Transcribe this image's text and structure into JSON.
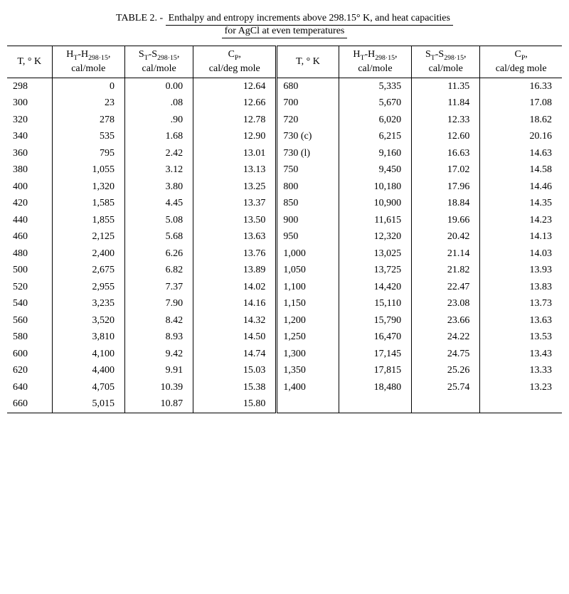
{
  "title": {
    "prefix": "TABLE 2. - ",
    "line1": "Enthalpy and entropy increments above 298.15° K, and heat capacities",
    "line2": "for AgCl at even temperatures"
  },
  "columns": {
    "temp": "T, ° K",
    "h_top": "H",
    "h_sub1": "T",
    "h_dash": "-H",
    "h_sub2": "298·15",
    "h_comma": ",",
    "h_unit": "cal/mole",
    "s_top": "S",
    "s_sub1": "T",
    "s_dash": "-S",
    "s_sub2": "298·15",
    "s_comma": ",",
    "s_unit": "cal/mole",
    "cp_top": "C",
    "cp_sub": "P",
    "cp_comma": ",",
    "cp_unit": "cal/deg mole"
  },
  "rows": [
    {
      "t1": "298",
      "h1": "0",
      "s1": "0.00",
      "c1": "12.64",
      "t2": "680",
      "h2": "5,335",
      "s2": "11.35",
      "c2": "16.33"
    },
    {
      "t1": "300",
      "h1": "23",
      "s1": ".08",
      "c1": "12.66",
      "t2": "700",
      "h2": "5,670",
      "s2": "11.84",
      "c2": "17.08"
    },
    {
      "t1": "320",
      "h1": "278",
      "s1": ".90",
      "c1": "12.78",
      "t2": "720",
      "h2": "6,020",
      "s2": "12.33",
      "c2": "18.62"
    },
    {
      "t1": "340",
      "h1": "535",
      "s1": "1.68",
      "c1": "12.90",
      "t2": "730 (c)",
      "h2": "6,215",
      "s2": "12.60",
      "c2": "20.16"
    },
    {
      "t1": "360",
      "h1": "795",
      "s1": "2.42",
      "c1": "13.01",
      "t2": "730 (l)",
      "h2": "9,160",
      "s2": "16.63",
      "c2": "14.63"
    },
    {
      "t1": "380",
      "h1": "1,055",
      "s1": "3.12",
      "c1": "13.13",
      "t2": "750",
      "h2": "9,450",
      "s2": "17.02",
      "c2": "14.58"
    },
    {
      "t1": "400",
      "h1": "1,320",
      "s1": "3.80",
      "c1": "13.25",
      "t2": "800",
      "h2": "10,180",
      "s2": "17.96",
      "c2": "14.46"
    },
    {
      "t1": "420",
      "h1": "1,585",
      "s1": "4.45",
      "c1": "13.37",
      "t2": "850",
      "h2": "10,900",
      "s2": "18.84",
      "c2": "14.35"
    },
    {
      "t1": "440",
      "h1": "1,855",
      "s1": "5.08",
      "c1": "13.50",
      "t2": "900",
      "h2": "11,615",
      "s2": "19.66",
      "c2": "14.23"
    },
    {
      "t1": "460",
      "h1": "2,125",
      "s1": "5.68",
      "c1": "13.63",
      "t2": "950",
      "h2": "12,320",
      "s2": "20.42",
      "c2": "14.13"
    },
    {
      "t1": "480",
      "h1": "2,400",
      "s1": "6.26",
      "c1": "13.76",
      "t2": "1,000",
      "h2": "13,025",
      "s2": "21.14",
      "c2": "14.03"
    },
    {
      "t1": "500",
      "h1": "2,675",
      "s1": "6.82",
      "c1": "13.89",
      "t2": "1,050",
      "h2": "13,725",
      "s2": "21.82",
      "c2": "13.93"
    },
    {
      "t1": "520",
      "h1": "2,955",
      "s1": "7.37",
      "c1": "14.02",
      "t2": "1,100",
      "h2": "14,420",
      "s2": "22.47",
      "c2": "13.83"
    },
    {
      "t1": "540",
      "h1": "3,235",
      "s1": "7.90",
      "c1": "14.16",
      "t2": "1,150",
      "h2": "15,110",
      "s2": "23.08",
      "c2": "13.73"
    },
    {
      "t1": "560",
      "h1": "3,520",
      "s1": "8.42",
      "c1": "14.32",
      "t2": "1,200",
      "h2": "15,790",
      "s2": "23.66",
      "c2": "13.63"
    },
    {
      "t1": "580",
      "h1": "3,810",
      "s1": "8.93",
      "c1": "14.50",
      "t2": "1,250",
      "h2": "16,470",
      "s2": "24.22",
      "c2": "13.53"
    },
    {
      "t1": "600",
      "h1": "4,100",
      "s1": "9.42",
      "c1": "14.74",
      "t2": "1,300",
      "h2": "17,145",
      "s2": "24.75",
      "c2": "13.43"
    },
    {
      "t1": "620",
      "h1": "4,400",
      "s1": "9.91",
      "c1": "15.03",
      "t2": "1,350",
      "h2": "17,815",
      "s2": "25.26",
      "c2": "13.33"
    },
    {
      "t1": "640",
      "h1": "4,705",
      "s1": "10.39",
      "c1": "15.38",
      "t2": "1,400",
      "h2": "18,480",
      "s2": "25.74",
      "c2": "13.23"
    },
    {
      "t1": "660",
      "h1": "5,015",
      "s1": "10.87",
      "c1": "15.80",
      "t2": "",
      "h2": "",
      "s2": "",
      "c2": ""
    }
  ]
}
